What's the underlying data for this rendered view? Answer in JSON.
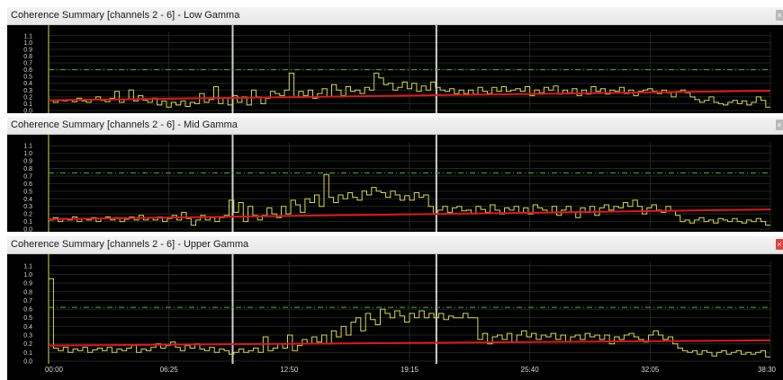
{
  "panels": [
    {
      "title": "Coherence Summary [channels 2 - 6] - Low Gamma",
      "close_state": "inactive",
      "threshold": 0.6,
      "trend": [
        0.15,
        0.29
      ],
      "series": [
        0.15,
        0.12,
        0.15,
        0.14,
        0.16,
        0.13,
        0.18,
        0.14,
        0.12,
        0.16,
        0.2,
        0.15,
        0.13,
        0.18,
        0.28,
        0.12,
        0.16,
        0.3,
        0.14,
        0.22,
        0.15,
        0.12,
        0.18,
        0.08,
        0.14,
        0.05,
        0.12,
        0.08,
        0.14,
        0.06,
        0.12,
        0.1,
        0.25,
        0.12,
        0.16,
        0.35,
        0.1,
        0.18,
        0.08,
        0.22,
        0.12,
        0.2,
        0.08,
        0.3,
        0.2,
        0.1,
        0.18,
        0.28,
        0.25,
        0.22,
        0.3,
        0.55,
        0.2,
        0.28,
        0.22,
        0.3,
        0.18,
        0.25,
        0.32,
        0.2,
        0.38,
        0.3,
        0.22,
        0.35,
        0.28,
        0.3,
        0.25,
        0.34,
        0.3,
        0.55,
        0.48,
        0.38,
        0.4,
        0.3,
        0.34,
        0.42,
        0.32,
        0.4,
        0.28,
        0.36,
        0.3,
        0.42,
        0.34,
        0.3,
        0.28,
        0.32,
        0.25,
        0.3,
        0.25,
        0.3,
        0.24,
        0.34,
        0.28,
        0.25,
        0.34,
        0.28,
        0.35,
        0.28,
        0.3,
        0.32,
        0.28,
        0.35,
        0.22,
        0.3,
        0.26,
        0.34,
        0.3,
        0.36,
        0.24,
        0.3,
        0.26,
        0.32,
        0.22,
        0.3,
        0.24,
        0.35,
        0.28,
        0.32,
        0.24,
        0.3,
        0.28,
        0.34,
        0.25,
        0.3,
        0.22,
        0.28,
        0.3,
        0.32,
        0.28,
        0.25,
        0.3,
        0.26,
        0.2,
        0.28,
        0.3,
        0.26,
        0.2,
        0.16,
        0.12,
        0.15,
        0.2,
        0.12,
        0.1,
        0.08,
        0.12,
        0.15,
        0.1,
        0.14,
        0.08,
        0.12,
        0.2,
        0.15,
        0.05
      ]
    },
    {
      "title": "Coherence Summary [channels 2 - 6] - Mid Gamma",
      "close_state": "inactive",
      "threshold": 0.74,
      "trend": [
        0.13,
        0.26
      ],
      "series": [
        0.12,
        0.15,
        0.1,
        0.14,
        0.12,
        0.16,
        0.1,
        0.14,
        0.12,
        0.15,
        0.1,
        0.14,
        0.16,
        0.12,
        0.15,
        0.1,
        0.13,
        0.16,
        0.12,
        0.18,
        0.12,
        0.15,
        0.12,
        0.16,
        0.1,
        0.14,
        0.18,
        0.12,
        0.22,
        0.14,
        0.05,
        0.12,
        0.18,
        0.12,
        0.15,
        0.1,
        0.15,
        0.18,
        0.38,
        0.22,
        0.35,
        0.1,
        0.3,
        0.18,
        0.12,
        0.18,
        0.28,
        0.2,
        0.15,
        0.3,
        0.2,
        0.38,
        0.32,
        0.22,
        0.4,
        0.35,
        0.45,
        0.3,
        0.72,
        0.42,
        0.35,
        0.45,
        0.4,
        0.48,
        0.42,
        0.38,
        0.5,
        0.45,
        0.55,
        0.5,
        0.48,
        0.42,
        0.5,
        0.45,
        0.38,
        0.44,
        0.38,
        0.48,
        0.42,
        0.45,
        0.3,
        0.2,
        0.25,
        0.3,
        0.22,
        0.28,
        0.3,
        0.24,
        0.25,
        0.2,
        0.3,
        0.26,
        0.22,
        0.32,
        0.25,
        0.2,
        0.28,
        0.25,
        0.3,
        0.22,
        0.28,
        0.2,
        0.32,
        0.28,
        0.25,
        0.22,
        0.3,
        0.18,
        0.25,
        0.3,
        0.22,
        0.15,
        0.28,
        0.22,
        0.3,
        0.18,
        0.28,
        0.32,
        0.25,
        0.3,
        0.28,
        0.35,
        0.3,
        0.38,
        0.3,
        0.2,
        0.28,
        0.32,
        0.25,
        0.22,
        0.3,
        0.24,
        0.18,
        0.1,
        0.12,
        0.08,
        0.12,
        0.15,
        0.1,
        0.12,
        0.08,
        0.14,
        0.12,
        0.1,
        0.14,
        0.1,
        0.08,
        0.12,
        0.1,
        0.14,
        0.1,
        0.05
      ]
    },
    {
      "title": "Coherence Summary [channels 2 - 6] - Upper Gamma",
      "close_state": "active",
      "threshold": 0.62,
      "trend": [
        0.18,
        0.24
      ],
      "series": [
        0.95,
        0.15,
        0.12,
        0.16,
        0.1,
        0.14,
        0.12,
        0.16,
        0.1,
        0.13,
        0.15,
        0.12,
        0.16,
        0.1,
        0.14,
        0.12,
        0.15,
        0.18,
        0.1,
        0.14,
        0.12,
        0.16,
        0.2,
        0.15,
        0.18,
        0.22,
        0.16,
        0.12,
        0.18,
        0.15,
        0.2,
        0.14,
        0.12,
        0.16,
        0.1,
        0.14,
        0.12,
        0.08,
        0.1,
        0.14,
        0.1,
        0.12,
        0.15,
        0.1,
        0.28,
        0.12,
        0.15,
        0.2,
        0.15,
        0.3,
        0.12,
        0.18,
        0.25,
        0.2,
        0.28,
        0.22,
        0.3,
        0.2,
        0.35,
        0.28,
        0.4,
        0.3,
        0.45,
        0.5,
        0.35,
        0.55,
        0.48,
        0.42,
        0.6,
        0.55,
        0.5,
        0.58,
        0.52,
        0.45,
        0.55,
        0.5,
        0.58,
        0.5,
        0.55,
        0.5,
        0.55,
        0.48,
        0.52,
        0.5,
        0.5,
        0.55,
        0.5,
        0.5,
        0.25,
        0.32,
        0.2,
        0.28,
        0.3,
        0.25,
        0.32,
        0.22,
        0.3,
        0.35,
        0.28,
        0.32,
        0.25,
        0.3,
        0.28,
        0.32,
        0.25,
        0.3,
        0.22,
        0.28,
        0.3,
        0.25,
        0.32,
        0.28,
        0.3,
        0.25,
        0.3,
        0.2,
        0.28,
        0.25,
        0.3,
        0.32,
        0.28,
        0.25,
        0.22,
        0.3,
        0.35,
        0.3,
        0.25,
        0.28,
        0.2,
        0.15,
        0.12,
        0.1,
        0.12,
        0.08,
        0.12,
        0.1,
        0.06,
        0.1,
        0.12,
        0.08,
        0.1,
        0.12,
        0.08,
        0.1,
        0.08,
        0.1,
        0.12,
        0.05
      ]
    }
  ],
  "y_ticks": [
    "1.1",
    "1.0",
    "0.9",
    "0.8",
    "0.7",
    "0.6",
    "0.5",
    "0.4",
    "0.3",
    "0.2",
    "0.1",
    "0.0"
  ],
  "markers": [
    "09:49",
    "20:41"
  ],
  "x_axis": {
    "range_minutes": [
      0,
      38.5
    ],
    "ticks": [
      "00:00",
      "06:25",
      "12:50",
      "19:15",
      "25:40",
      "32:05",
      "38:30"
    ]
  },
  "colors": {
    "series": "#d8d84a",
    "trend": "#e01818",
    "threshold": "#3cb83c",
    "marker": "#d0d0d0",
    "grid": "#1c2a1c",
    "axis": "#d8d84a",
    "close_active": "#e04040"
  }
}
